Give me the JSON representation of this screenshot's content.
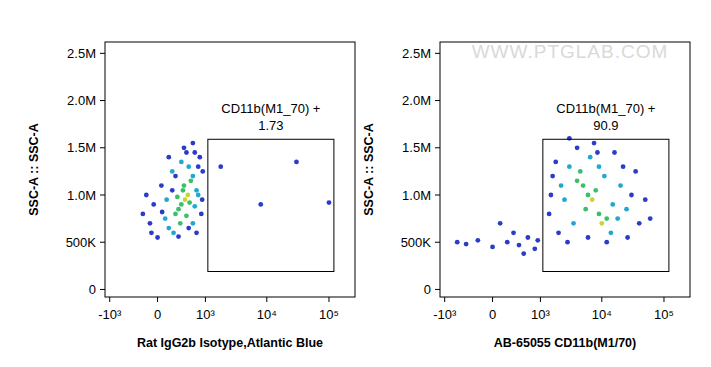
{
  "chart_data": [
    {
      "type": "scatter",
      "x_label": "Rat IgG2b Isotype,Atlantic Blue",
      "y_label": "SSC-A :: SSC-A",
      "xlim": [
        -1200,
        262144
      ],
      "ylim": [
        -80000,
        2620000
      ],
      "xticks": [
        {
          "value": -1000,
          "label": "-10³"
        },
        0,
        {
          "value": 1000,
          "label": "10³"
        },
        {
          "value": 10000,
          "label": "10⁴"
        },
        {
          "value": 100000,
          "label": "10⁵"
        }
      ],
      "yticks": [
        0,
        {
          "value": 500000,
          "label": "500K"
        },
        {
          "value": 1000000,
          "label": "1.0M"
        },
        {
          "value": 1500000,
          "label": "1.5M"
        },
        {
          "value": 2000000,
          "label": "2.0M"
        },
        {
          "value": 2500000,
          "label": "2.5M"
        }
      ],
      "gate": {
        "label": "CD11b(M1_70) +",
        "value": 1.73,
        "x": [
          1100,
          120000
        ],
        "y": [
          190000,
          1590000
        ]
      },
      "x": [
        350,
        420,
        300,
        480,
        380,
        250,
        450,
        520,
        330,
        400,
        280,
        550,
        150,
        600,
        200,
        650,
        100,
        700,
        220,
        500,
        350,
        600,
        120,
        750,
        -100,
        -50,
        0,
        50,
        800,
        850,
        400,
        300,
        700,
        900,
        -150,
        150,
        600,
        -80,
        250,
        500,
        880,
        60,
        450,
        200,
        -200,
        750,
        650,
        1800,
        8000,
        30000,
        100000
      ],
      "values": [
        900000,
        950000,
        850000,
        1000000,
        1050000,
        800000,
        780000,
        920000,
        700000,
        1100000,
        980000,
        1150000,
        650000,
        1200000,
        1250000,
        880000,
        750000,
        1050000,
        600000,
        1300000,
        1350000,
        700000,
        950000,
        1000000,
        700000,
        900000,
        550000,
        1100000,
        1400000,
        800000,
        1500000,
        560000,
        600000,
        1250000,
        1000000,
        1400000,
        1550000,
        600000,
        1200000,
        650000,
        950000,
        820000,
        1450000,
        1050000,
        800000,
        1300000,
        1450000,
        1300000,
        900000,
        1350000,
        920000
      ],
      "colors": [
        "#3cbf6a",
        "#c9d43a",
        "#3cbf6a",
        "#c9d43a",
        "#3cbf6a",
        "#3cbf6a",
        "#3cbf6a",
        "#3cbf6a",
        "#3cbf6a",
        "#3cbf6a",
        "#3cbf6a",
        "#3cbf6a",
        "#22a8d0",
        "#22a8d0",
        "#22a8d0",
        "#22a8d0",
        "#22a8d0",
        "#22a8d0",
        "#22a8d0",
        "#22a8d0",
        "#22a8d0",
        "#22a8d0",
        "#22a8d0",
        "#22a8d0",
        "#2a3cc8",
        "#2a3cc8",
        "#2a3cc8",
        "#2a3cc8",
        "#2a3cc8",
        "#2a3cc8",
        "#2a3cc8",
        "#2a3cc8",
        "#2a3cc8",
        "#2a3cc8",
        "#2a3cc8",
        "#2a3cc8",
        "#2a3cc8",
        "#2a3cc8",
        "#2a3cc8",
        "#2a3cc8",
        "#2a3cc8",
        "#2a3cc8",
        "#2a3cc8",
        "#2a3cc8",
        "#2a3cc8",
        "#2a3cc8",
        "#2a3cc8",
        "#2a3cc8",
        "#2a3cc8",
        "#2a3cc8",
        "#2a3cc8"
      ]
    },
    {
      "type": "scatter",
      "x_label": "AB-65055 CD11b(M1/70)",
      "y_label": "SSC-A :: SSC-A",
      "watermark": "WWW.PTGLAB.COM",
      "xlim": [
        -1200,
        262144
      ],
      "ylim": [
        -80000,
        2620000
      ],
      "xticks": [
        {
          "value": -1000,
          "label": "-10³"
        },
        0,
        {
          "value": 1000,
          "label": "10³"
        },
        {
          "value": 10000,
          "label": "10⁴"
        },
        {
          "value": 100000,
          "label": "10⁵"
        }
      ],
      "yticks": [
        0,
        {
          "value": 500000,
          "label": "500K"
        },
        {
          "value": 1000000,
          "label": "1.0M"
        },
        {
          "value": 1500000,
          "label": "1.5M"
        },
        {
          "value": 2000000,
          "label": "2.0M"
        },
        {
          "value": 2500000,
          "label": "2.5M"
        }
      ],
      "gate": {
        "label": "CD11b(M1_70) +",
        "value": 90.9,
        "x": [
          1100,
          120000
        ],
        "y": [
          190000,
          1590000
        ]
      },
      "x": [
        5000,
        7000,
        9000,
        6000,
        4000,
        10000,
        8000,
        5500,
        12000,
        4500,
        3000,
        15000,
        2500,
        20000,
        11000,
        3500,
        14000,
        6500,
        18000,
        2200,
        9000,
        25000,
        1500,
        1800,
        30000,
        40000,
        2000,
        4000,
        16000,
        1400,
        35000,
        7500,
        50000,
        2800,
        22000,
        12000,
        6000,
        3000,
        60000,
        8500,
        26000,
        1600,
        -400,
        -200,
        0,
        200,
        400,
        600,
        800,
        -600,
        300,
        900,
        100,
        500
      ],
      "values": [
        1100000,
        950000,
        800000,
        1000000,
        1150000,
        700000,
        1050000,
        850000,
        750000,
        1250000,
        1300000,
        900000,
        950000,
        1100000,
        1200000,
        700000,
        600000,
        1400000,
        750000,
        1100000,
        1300000,
        850000,
        1000000,
        1350000,
        1000000,
        700000,
        600000,
        1500000,
        1450000,
        800000,
        1250000,
        1550000,
        950000,
        500000,
        1300000,
        500000,
        550000,
        1600000,
        750000,
        1450000,
        550000,
        1200000,
        480000,
        520000,
        450000,
        500000,
        470000,
        550000,
        430000,
        500000,
        600000,
        520000,
        700000,
        380000
      ],
      "colors": [
        "#3cbf6a",
        "#c9d43a",
        "#3cbf6a",
        "#3cbf6a",
        "#3cbf6a",
        "#c9d43a",
        "#3cbf6a",
        "#3cbf6a",
        "#3cbf6a",
        "#3cbf6a",
        "#22a8d0",
        "#22a8d0",
        "#22a8d0",
        "#22a8d0",
        "#22a8d0",
        "#22a8d0",
        "#22a8d0",
        "#22a8d0",
        "#22a8d0",
        "#22a8d0",
        "#22a8d0",
        "#22a8d0",
        "#2a3cc8",
        "#2a3cc8",
        "#2a3cc8",
        "#2a3cc8",
        "#2a3cc8",
        "#2a3cc8",
        "#2a3cc8",
        "#2a3cc8",
        "#2a3cc8",
        "#2a3cc8",
        "#2a3cc8",
        "#2a3cc8",
        "#2a3cc8",
        "#2a3cc8",
        "#2a3cc8",
        "#2a3cc8",
        "#2a3cc8",
        "#2a3cc8",
        "#2a3cc8",
        "#2a3cc8",
        "#2a3cc8",
        "#2a3cc8",
        "#2a3cc8",
        "#2a3cc8",
        "#2a3cc8",
        "#2a3cc8",
        "#2a3cc8",
        "#2a3cc8",
        "#2a3cc8",
        "#2a3cc8",
        "#2a3cc8",
        "#2a3cc8"
      ]
    }
  ]
}
